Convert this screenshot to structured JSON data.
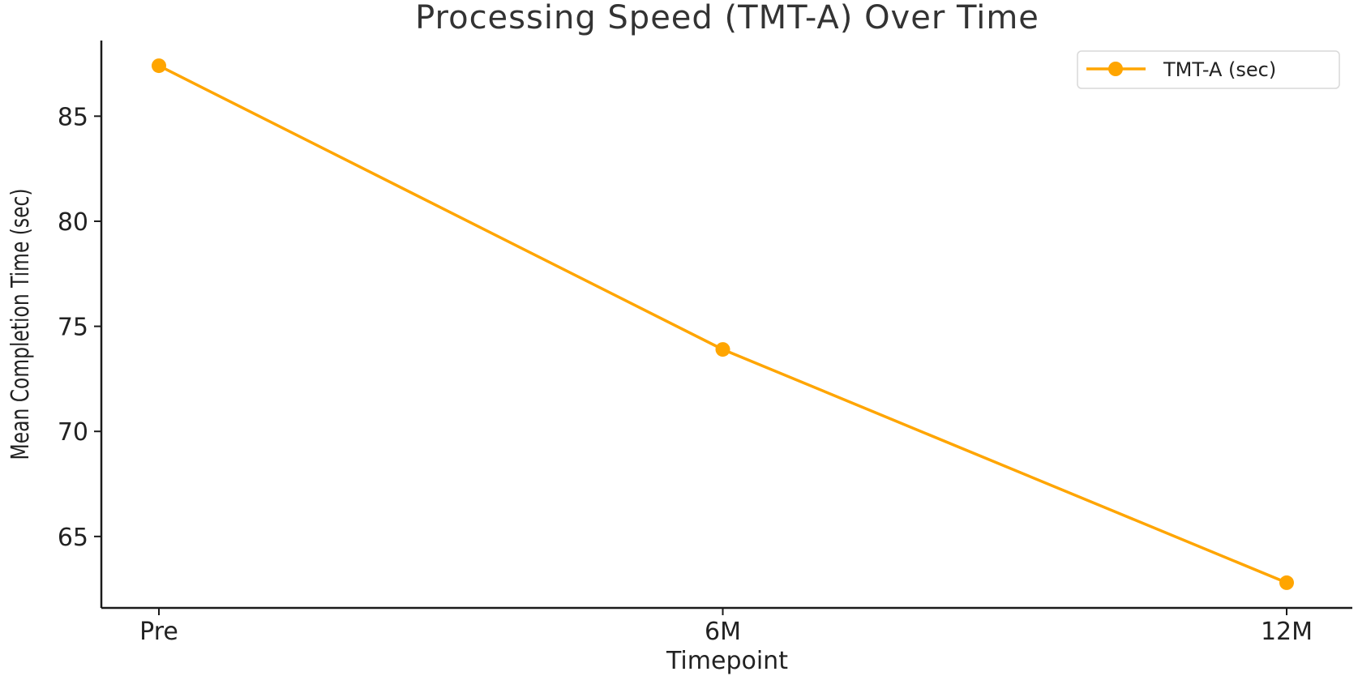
{
  "colors": {
    "series": "#FFA500",
    "axis": "#1a1a1a",
    "text": "#222222",
    "background": "#ffffff"
  },
  "chart_data": {
    "type": "line",
    "title": "Processing Speed (TMT-A) Over Time",
    "xlabel": "Timepoint",
    "ylabel": "Mean Completion Time (sec)",
    "categories": [
      "Pre",
      "6M",
      "12M"
    ],
    "series": [
      {
        "name": "TMT-A (sec)",
        "values": [
          87.4,
          73.9,
          62.8
        ],
        "color": "#FFA500",
        "marker": "circle"
      }
    ],
    "yticks": [
      65,
      70,
      75,
      80,
      85
    ],
    "ylim": [
      61.6,
      88.6
    ],
    "grid": false,
    "legend_position": "top-right"
  }
}
